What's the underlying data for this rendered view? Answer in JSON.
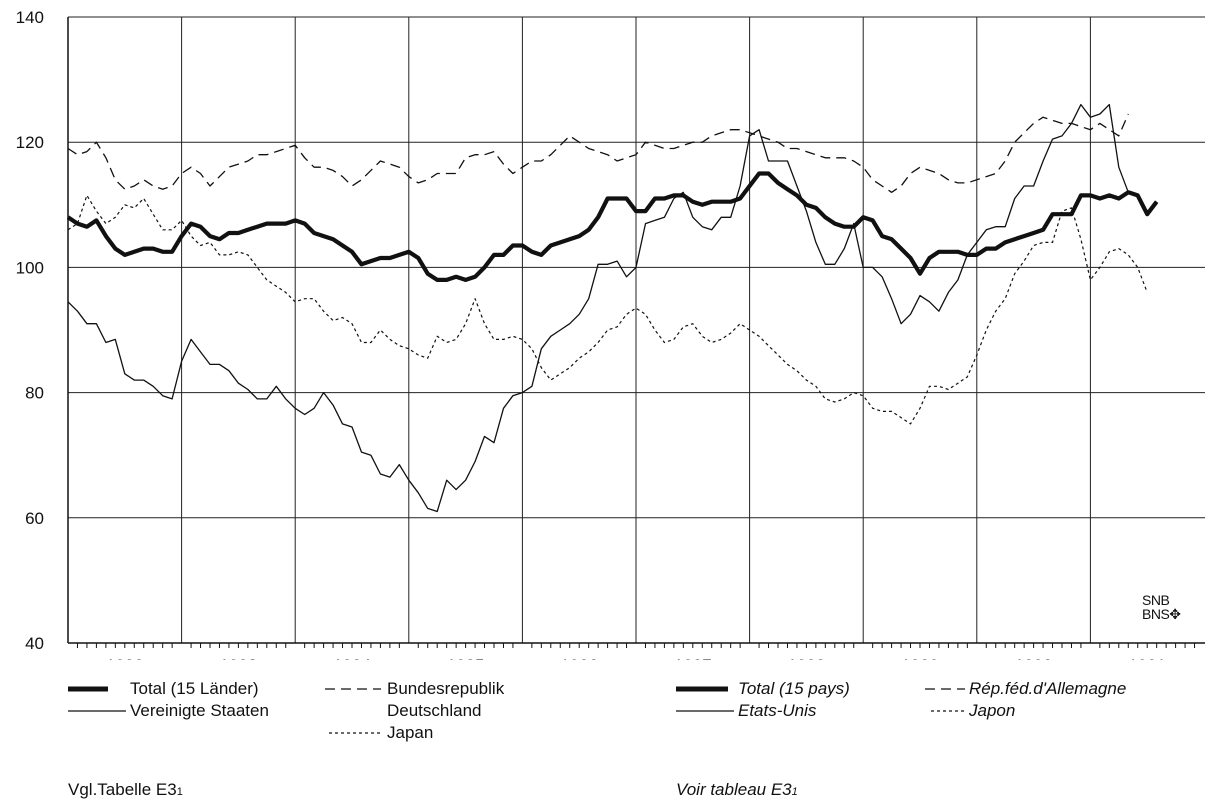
{
  "chart_data": {
    "type": "line",
    "ylim": [
      40,
      140
    ],
    "yticks": [
      40,
      60,
      80,
      100,
      120,
      140
    ],
    "xlim": [
      1981.5,
      1991.5
    ],
    "xticks": [
      1982,
      1983,
      1984,
      1985,
      1986,
      1987,
      1988,
      1989,
      1990,
      1991
    ],
    "grid": true,
    "series": [
      {
        "name": "Total (15 Länder)",
        "style": "bold",
        "x0": 1981.5,
        "step": 0.0833333,
        "values": [
          108,
          107,
          106.5,
          107.5,
          105,
          103,
          102,
          102.5,
          103,
          103,
          102.5,
          102.5,
          105,
          107,
          106.5,
          105,
          104.5,
          105.5,
          105.5,
          106,
          106.5,
          107,
          107,
          107,
          107.5,
          107,
          105.5,
          105,
          104.5,
          103.5,
          102.5,
          100.5,
          101,
          101.5,
          101.5,
          102,
          102.5,
          101.5,
          99,
          98,
          98,
          98.5,
          98,
          98.5,
          100,
          102,
          102,
          103.5,
          103.5,
          102.5,
          102,
          103.5,
          104,
          104.5,
          105,
          106,
          108,
          111,
          111,
          111,
          109,
          109,
          111,
          111,
          111.5,
          111.5,
          110.5,
          110,
          110.5,
          110.5,
          110.5,
          111,
          113,
          115,
          115,
          113.5,
          112.5,
          111.5,
          110,
          109.5,
          108,
          107,
          106.5,
          106.5,
          108,
          107.5,
          105,
          104.5,
          103,
          101.5,
          99,
          101.5,
          102.5,
          102.5,
          102.5,
          102,
          102,
          103,
          103,
          104,
          104.5,
          105,
          105.5,
          106,
          108.5,
          108.5,
          108.5,
          111.5,
          111.5,
          111,
          111.5,
          111,
          112,
          111.5,
          108.5,
          110.5
        ]
      },
      {
        "name": "Vereinigte Staaten",
        "style": "solid",
        "x0": 1981.5,
        "step": 0.0833333,
        "values": [
          94.5,
          93,
          91,
          91,
          88,
          88.5,
          83,
          82,
          82,
          81,
          79.5,
          79,
          85,
          88.5,
          86.5,
          84.5,
          84.5,
          83.5,
          81.5,
          80.5,
          79,
          79,
          81,
          79,
          77.5,
          76.5,
          77.5,
          80,
          78,
          75,
          74.5,
          70.5,
          70,
          67,
          66.5,
          68.5,
          66,
          64,
          61.5,
          61,
          66,
          64.5,
          66,
          69,
          73,
          72,
          77.5,
          79.5,
          80,
          81,
          87,
          89,
          90,
          91,
          92.5,
          95,
          100.5,
          100.5,
          101,
          98.5,
          100,
          107,
          107.5,
          108,
          111,
          112,
          108,
          106.5,
          106,
          108,
          108,
          113,
          121,
          122,
          117,
          117,
          117,
          113,
          109,
          104,
          100.5,
          100.5,
          103,
          107,
          100,
          100,
          98.5,
          95,
          91,
          92.5,
          95.5,
          94.5,
          93,
          96,
          98,
          102,
          104,
          106,
          106.5,
          106.5,
          111,
          113,
          113,
          117,
          120.5,
          121,
          123,
          126,
          124,
          124.5,
          126,
          116,
          112
        ]
      },
      {
        "name": "Bundesrepublik Deutschland",
        "style": "dashed",
        "x0": 1981.5,
        "step": 0.0833333,
        "values": [
          119,
          118,
          118.5,
          120,
          117.5,
          114,
          112.5,
          113,
          114,
          113,
          112.5,
          113,
          115,
          116,
          115,
          113,
          114.5,
          116,
          116.5,
          117,
          118,
          118,
          118.5,
          119,
          119.5,
          117.5,
          116,
          116,
          115.5,
          114.5,
          113,
          114,
          115.5,
          117,
          116.5,
          116,
          114.5,
          113.5,
          114,
          115,
          115,
          115,
          117.5,
          118,
          118,
          118.5,
          116.5,
          115,
          116,
          117,
          117,
          118,
          119.5,
          121,
          120,
          119,
          118.5,
          118,
          117,
          117.5,
          118,
          120,
          119.5,
          119,
          119,
          119.5,
          120,
          120,
          121,
          121.5,
          122,
          122,
          121.5,
          121,
          120.5,
          120,
          119,
          119,
          118.5,
          118,
          117.5,
          117.5,
          117.5,
          117,
          116,
          114,
          113,
          112,
          113,
          115,
          116,
          115.5,
          115,
          114,
          113.5,
          113.5,
          114,
          114.5,
          115,
          117,
          120,
          121.5,
          123,
          124,
          123.5,
          123,
          123,
          122.5,
          122,
          123,
          122,
          121,
          124.5
        ]
      },
      {
        "name": "Japan",
        "style": "dotted",
        "x0": 1981.5,
        "step": 0.0833333,
        "values": [
          106,
          107,
          111.5,
          109,
          107,
          108,
          110,
          109.5,
          111,
          108.5,
          106,
          106,
          107.5,
          105,
          103.5,
          104,
          102,
          102,
          102.5,
          102,
          100,
          98,
          97,
          96,
          94.5,
          95,
          95,
          93,
          91.5,
          92,
          91,
          88,
          88,
          90,
          88.5,
          87.5,
          87,
          86,
          85.5,
          89,
          88,
          88.5,
          91,
          95,
          91,
          88.5,
          88.5,
          89,
          88.5,
          87,
          84,
          82,
          83,
          84,
          85.5,
          86.5,
          88,
          90,
          90.5,
          92.5,
          93.5,
          92.5,
          90,
          88,
          88.5,
          90.5,
          91,
          89,
          88,
          88.5,
          89.5,
          91,
          90,
          89,
          87.5,
          86,
          84.5,
          83.5,
          82,
          81,
          79,
          78.5,
          79,
          80,
          79.5,
          77.5,
          77,
          77,
          76,
          75,
          77.5,
          81,
          81,
          80.5,
          81.5,
          82.5,
          86,
          90,
          93,
          95,
          99,
          101,
          103.5,
          104,
          104,
          109,
          109.5,
          104.5,
          98,
          100,
          102.5,
          103,
          102,
          100,
          96
        ]
      }
    ]
  },
  "axis": {
    "y_tick_labels": [
      "40",
      "60",
      "80",
      "100",
      "120",
      "140"
    ],
    "x_tick_labels": [
      "1982",
      "1983",
      "1984",
      "1985",
      "1986",
      "1987",
      "1988",
      "1989",
      "1990",
      "1991"
    ]
  },
  "legend_de": {
    "total": "Total (15 Länder)",
    "usa": "Vereinigte Staaten",
    "brd_line1": "Bundesrepublik",
    "brd_line2": "Deutschland",
    "japan": "Japan"
  },
  "legend_fr": {
    "total": "Total (15 pays)",
    "usa": "Etats-Unis",
    "brd": "Rép.féd.d'Allemagne",
    "japan": "Japon"
  },
  "notes": {
    "de_prefix": "Vgl.Tabelle E3",
    "de_sub": "1",
    "fr_prefix": "Voir tableau E3",
    "fr_sub": "1"
  },
  "logo": {
    "line1": "SNB",
    "line2": "BNS"
  }
}
